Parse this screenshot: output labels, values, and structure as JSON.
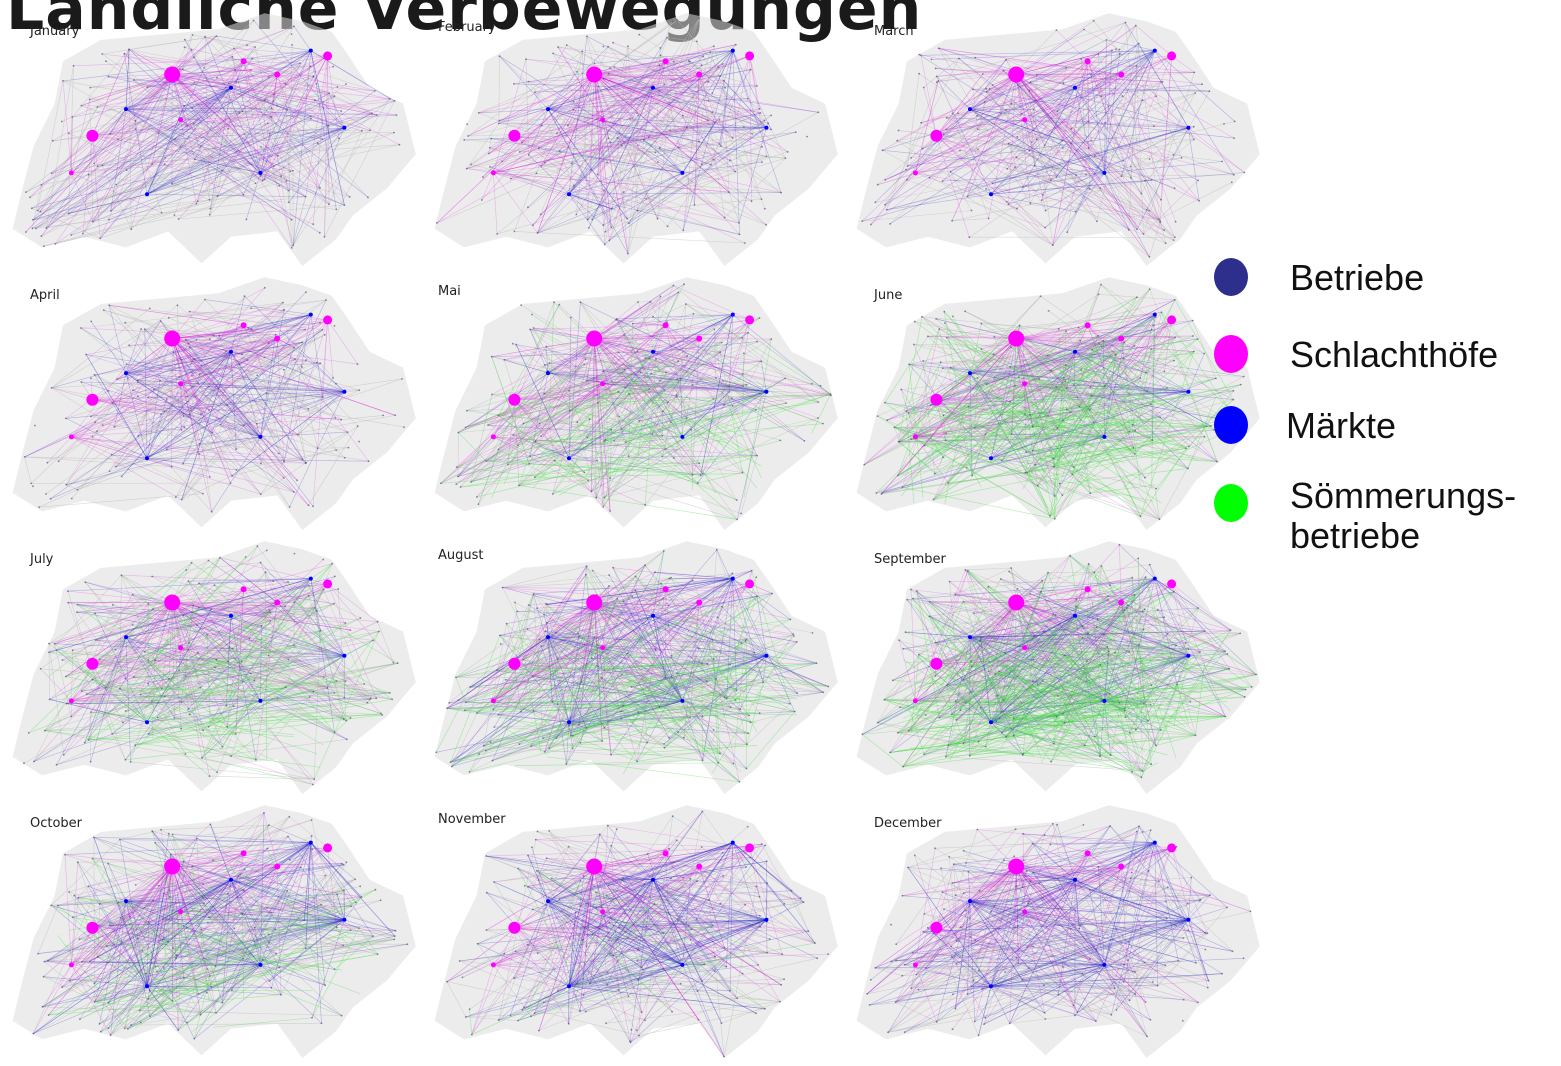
{
  "title": "Ländliche Verbewegungen",
  "months": [
    {
      "label": "January",
      "overlay": "#3a3adf",
      "overlay_level": 0.3,
      "green_level": 0.0
    },
    {
      "label": "February",
      "overlay": "#3a3adf",
      "overlay_level": 0.25,
      "green_level": 0.0
    },
    {
      "label": "March",
      "overlay": "#3a3adf",
      "overlay_level": 0.25,
      "green_level": 0.0
    },
    {
      "label": "April",
      "overlay": "#3a3adf",
      "overlay_level": 0.3,
      "green_level": 0.0
    },
    {
      "label": "Mai",
      "overlay": "#3a3adf",
      "overlay_level": 0.2,
      "green_level": 0.35
    },
    {
      "label": "June",
      "overlay": "#3a3adf",
      "overlay_level": 0.2,
      "green_level": 0.7
    },
    {
      "label": "July",
      "overlay": "#3a3adf",
      "overlay_level": 0.2,
      "green_level": 0.35
    },
    {
      "label": "August",
      "overlay": "#3a3adf",
      "overlay_level": 0.55,
      "green_level": 0.45
    },
    {
      "label": "September",
      "overlay": "#3a3adf",
      "overlay_level": 0.5,
      "green_level": 0.85
    },
    {
      "label": "October",
      "overlay": "#3a3adf",
      "overlay_level": 0.65,
      "green_level": 0.25
    },
    {
      "label": "November",
      "overlay": "#3a3adf",
      "overlay_level": 0.7,
      "green_level": 0.05
    },
    {
      "label": "December",
      "overlay": "#3a3adf",
      "overlay_level": 0.7,
      "green_level": 0.0
    }
  ],
  "legend": [
    {
      "lines": [
        "Betriebe"
      ],
      "color": "#2e2e8c"
    },
    {
      "lines": [
        "Schlachthöfe"
      ],
      "color": "#ff00ff"
    },
    {
      "lines": [
        "Märkte"
      ],
      "color": "#0000ff"
    },
    {
      "lines": [
        "Sömmerungs-",
        "betriebe"
      ],
      "color": "#00ff00"
    }
  ],
  "colors": {
    "network_grey": "#b9b9b9",
    "slaughter": "#e020e0",
    "market": "#2828c8",
    "summer": "#33dd33"
  }
}
